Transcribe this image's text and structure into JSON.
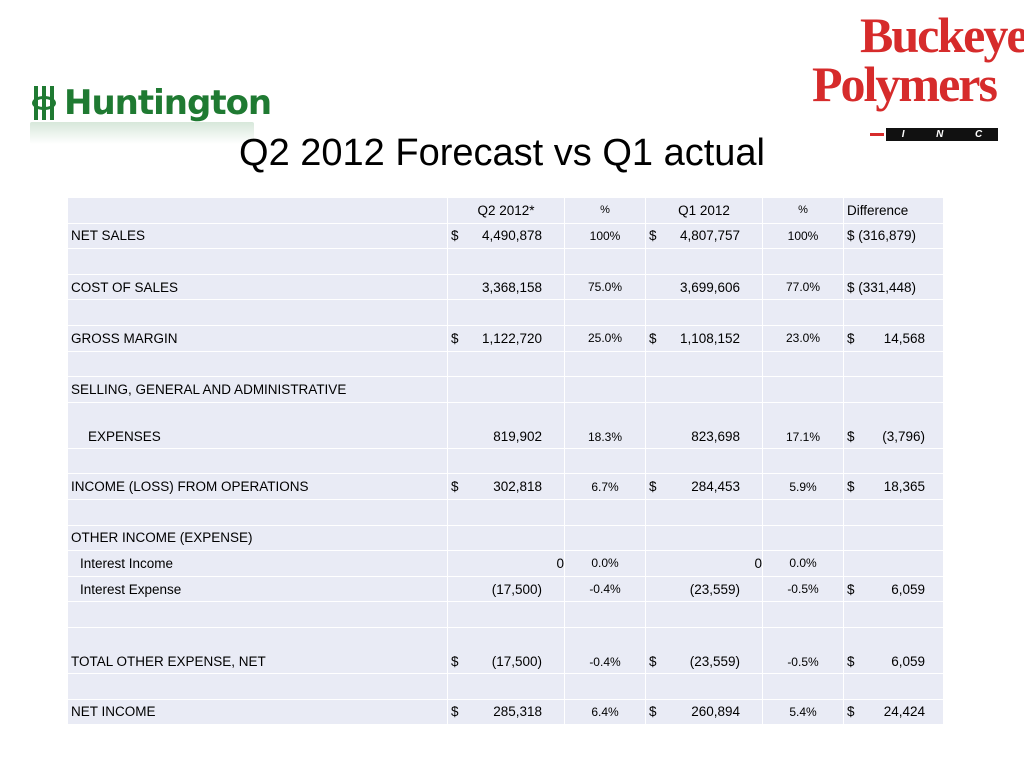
{
  "logos": {
    "huntington": "Huntington",
    "buckeye_line1": "Buckeye",
    "buckeye_line2": "Polymers",
    "buckeye_inc": [
      "I",
      "N",
      "C"
    ]
  },
  "title": "Q2 2012 Forecast vs Q1 actual",
  "table": {
    "headers": [
      "",
      "Q2 2012*",
      "%",
      "Q1 2012",
      "%",
      "Difference"
    ],
    "rows": [
      {
        "label": "NET SALES",
        "q2_dollar": "$",
        "q2": "4,490,878",
        "q2_pct": "100%",
        "q1_dollar": "$",
        "q1": "4,807,757",
        "q1_pct": "100%",
        "diff": "$ (316,879)"
      },
      {
        "label": "COST OF SALES",
        "q2": "3,368,158",
        "q2_pct": "75.0%",
        "q1": "3,699,606",
        "q1_pct": "77.0%",
        "diff": "$ (331,448)"
      },
      {
        "label": "GROSS MARGIN",
        "q2_dollar": "$",
        "q2": "1,122,720",
        "q2_pct": "25.0%",
        "q1_dollar": "$",
        "q1": "1,108,152",
        "q1_pct": "23.0%",
        "diff_dollar": "$",
        "diff": "14,568"
      },
      {
        "label": "SELLING, GENERAL AND ADMINISTRATIVE"
      },
      {
        "label": "EXPENSES",
        "q2": "819,902",
        "q2_pct": "18.3%",
        "q1": "823,698",
        "q1_pct": "17.1%",
        "diff_dollar": "$",
        "diff": "(3,796)"
      },
      {
        "label": "INCOME (LOSS) FROM OPERATIONS",
        "q2_dollar": "$",
        "q2": "302,818",
        "q2_pct": "6.7%",
        "q1_dollar": "$",
        "q1": "284,453",
        "q1_pct": "5.9%",
        "diff_dollar": "$",
        "diff": "18,365"
      },
      {
        "label": "OTHER INCOME (EXPENSE)"
      },
      {
        "label": "Interest Income",
        "q2": "0",
        "q2_pct": "0.0%",
        "q1": "0",
        "q1_pct": "0.0%"
      },
      {
        "label": "Interest Expense",
        "q2": "(17,500)",
        "q2_pct": "-0.4%",
        "q1": "(23,559)",
        "q1_pct": "-0.5%",
        "diff_dollar": "$",
        "diff": "6,059"
      },
      {
        "label": "TOTAL OTHER EXPENSE, NET",
        "q2_dollar": "$",
        "q2": "(17,500)",
        "q2_pct": "-0.4%",
        "q1_dollar": "$",
        "q1": "(23,559)",
        "q1_pct": "-0.5%",
        "diff_dollar": "$",
        "diff": "6,059"
      },
      {
        "label": "NET INCOME",
        "q2_dollar": "$",
        "q2": "285,318",
        "q2_pct": "6.4%",
        "q1_dollar": "$",
        "q1": "260,894",
        "q1_pct": "5.4%",
        "diff_dollar": "$",
        "diff": "24,424"
      }
    ]
  },
  "colors": {
    "huntington_green": "#1f7a32",
    "buckeye_red": "#d62b2b",
    "table_fill": "#e9ebf5"
  }
}
